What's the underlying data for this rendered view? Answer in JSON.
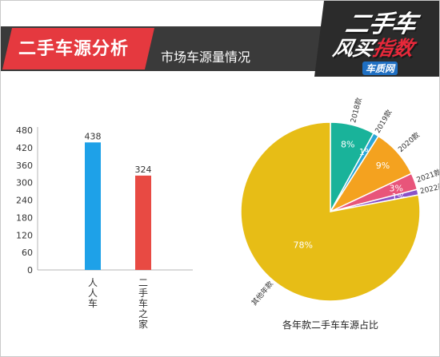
{
  "header": {
    "title": "二手车源分析",
    "subtitle": "市场车源量情况",
    "logo_line1": "二手车",
    "logo_line2_a": "风",
    "logo_line2_b": "买",
    "logo_line2_c": "指数",
    "logo_site": "车质网"
  },
  "colors": {
    "header_bar": "#3a3a3a",
    "header_red": "#e5393f",
    "bar_blue": "#1ea1e8",
    "bar_red": "#e84a43",
    "pie_teal": "#19b39a",
    "pie_blue": "#2aa6d6",
    "pie_orange": "#f4a21f",
    "pie_pink": "#e8557a",
    "pie_purple": "#8a52c8",
    "pie_yellow": "#e7bd16"
  },
  "chart_data": [
    {
      "type": "bar",
      "categories": [
        "人人车",
        "二手车之家"
      ],
      "values": [
        438,
        324
      ],
      "ylim": [
        0,
        480
      ],
      "yticks": [
        0,
        60,
        120,
        180,
        240,
        300,
        360,
        420,
        480
      ],
      "grid": false
    },
    {
      "type": "pie",
      "title": "各年款二手车车源占比",
      "labels": [
        "2018款",
        "2019款",
        "2020款",
        "2021款",
        "2022款",
        "其他年款"
      ],
      "values": [
        8,
        1,
        9,
        3,
        1,
        78
      ],
      "value_labels": [
        "8%",
        "1%",
        "9%",
        "3%",
        "1%",
        "78%"
      ]
    }
  ]
}
